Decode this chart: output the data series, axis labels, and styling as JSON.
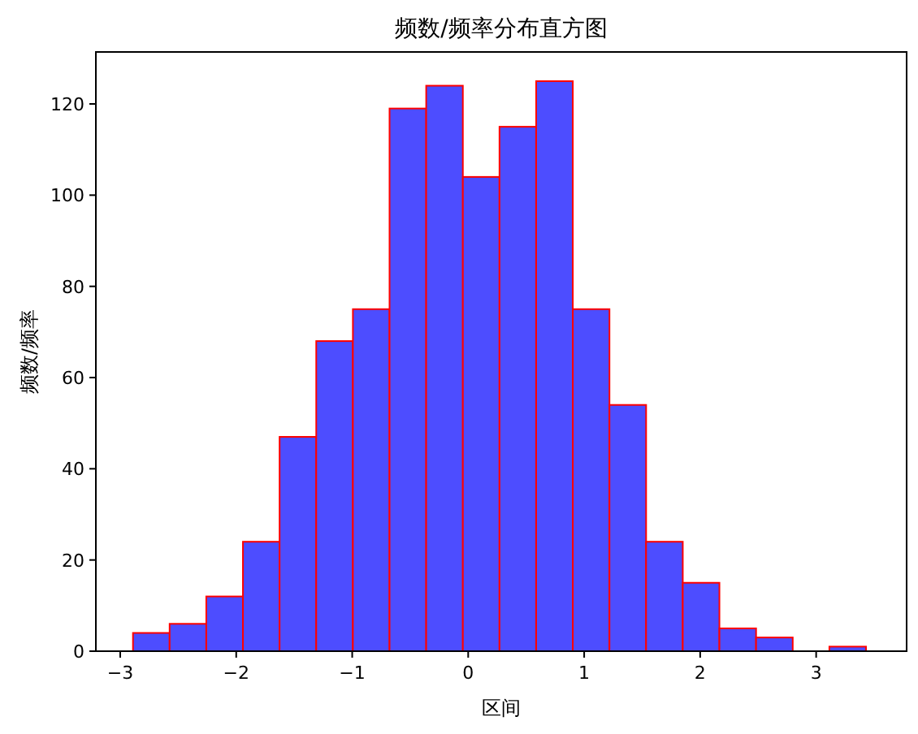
{
  "chart_data": {
    "type": "histogram",
    "title": "频数/频率分布直方图",
    "xlabel": "区间",
    "ylabel": "频数/频率",
    "bins": [
      -2.89,
      -2.574,
      -2.258,
      -1.942,
      -1.626,
      -1.31,
      -0.994,
      -0.678,
      -0.362,
      -0.046,
      0.27,
      0.586,
      0.902,
      1.218,
      1.534,
      1.85,
      2.166,
      2.482,
      2.798,
      3.114,
      3.43
    ],
    "values": [
      4,
      6,
      12,
      24,
      47,
      68,
      75,
      119,
      124,
      104,
      115,
      125,
      75,
      54,
      24,
      15,
      5,
      3,
      0,
      1
    ],
    "color": "#4d4dff",
    "xlim": [
      -3.21,
      3.78
    ],
    "ylim": [
      0,
      131.4
    ],
    "xticks": [
      -3,
      -2,
      -1,
      0,
      1,
      2,
      3
    ],
    "yticks": [
      0,
      20,
      40,
      60,
      80,
      100,
      120
    ]
  }
}
